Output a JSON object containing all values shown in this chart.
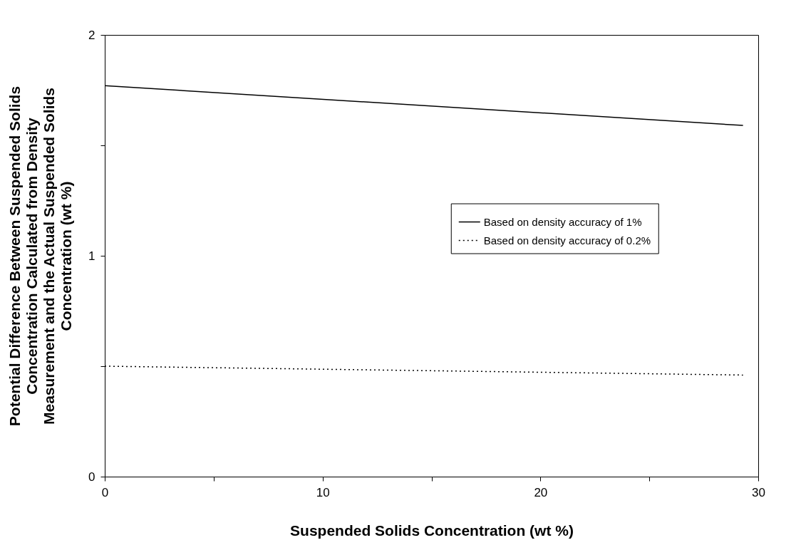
{
  "chart_data": {
    "type": "line",
    "xlabel": "Suspended Solids Concentration (wt %)",
    "ylabel": "Potential Difference Between Suspended Solids Concentration Calculated from Density Measurement and the Actual Suspended Solids Concentration (wt %)",
    "xlim": [
      0,
      30
    ],
    "xticks": [
      0,
      {
        "value": 5,
        "label": null
      },
      10,
      {
        "value": 15,
        "label": null
      },
      20,
      {
        "value": 25,
        "label": null
      },
      30
    ],
    "ylim": [
      0,
      2
    ],
    "yticks": [
      0,
      {
        "value": 0.5,
        "label": null
      },
      1,
      {
        "value": 1.5,
        "label": null
      },
      2
    ],
    "grid": false,
    "legend": "right",
    "marker": "none",
    "x": [
      0,
      29.3
    ],
    "series": [
      {
        "name": "Based on density accuracy of 1%",
        "color": "#000000",
        "line_style": "solid",
        "values": [
          1.77,
          1.59
        ]
      },
      {
        "name": "Based on density accuracy of 0.2%",
        "color": "#000000",
        "line_style": "dotted",
        "values": [
          0.5,
          0.46
        ]
      }
    ]
  }
}
